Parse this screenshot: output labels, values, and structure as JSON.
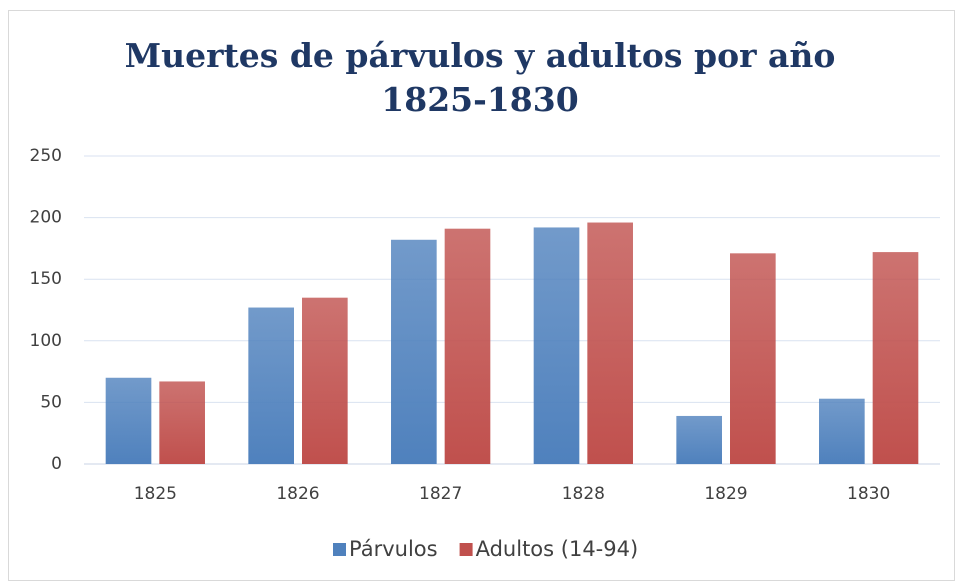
{
  "chart_data": {
    "type": "bar",
    "title": "Muertes de párvulos y adultos por año 1825-1830",
    "categories": [
      "1825",
      "1826",
      "1827",
      "1828",
      "1829",
      "1830"
    ],
    "series": [
      {
        "name": "Párvulos",
        "color": "#4f81bd",
        "values": [
          70,
          127,
          182,
          192,
          39,
          53
        ]
      },
      {
        "name": "Adultos (14-94)",
        "color": "#c0504d",
        "values": [
          67,
          135,
          191,
          196,
          171,
          172
        ]
      }
    ],
    "ylim": [
      0,
      250
    ],
    "yticks": [
      0,
      50,
      100,
      150,
      200,
      250
    ],
    "grid": true,
    "legend": "bottom"
  }
}
